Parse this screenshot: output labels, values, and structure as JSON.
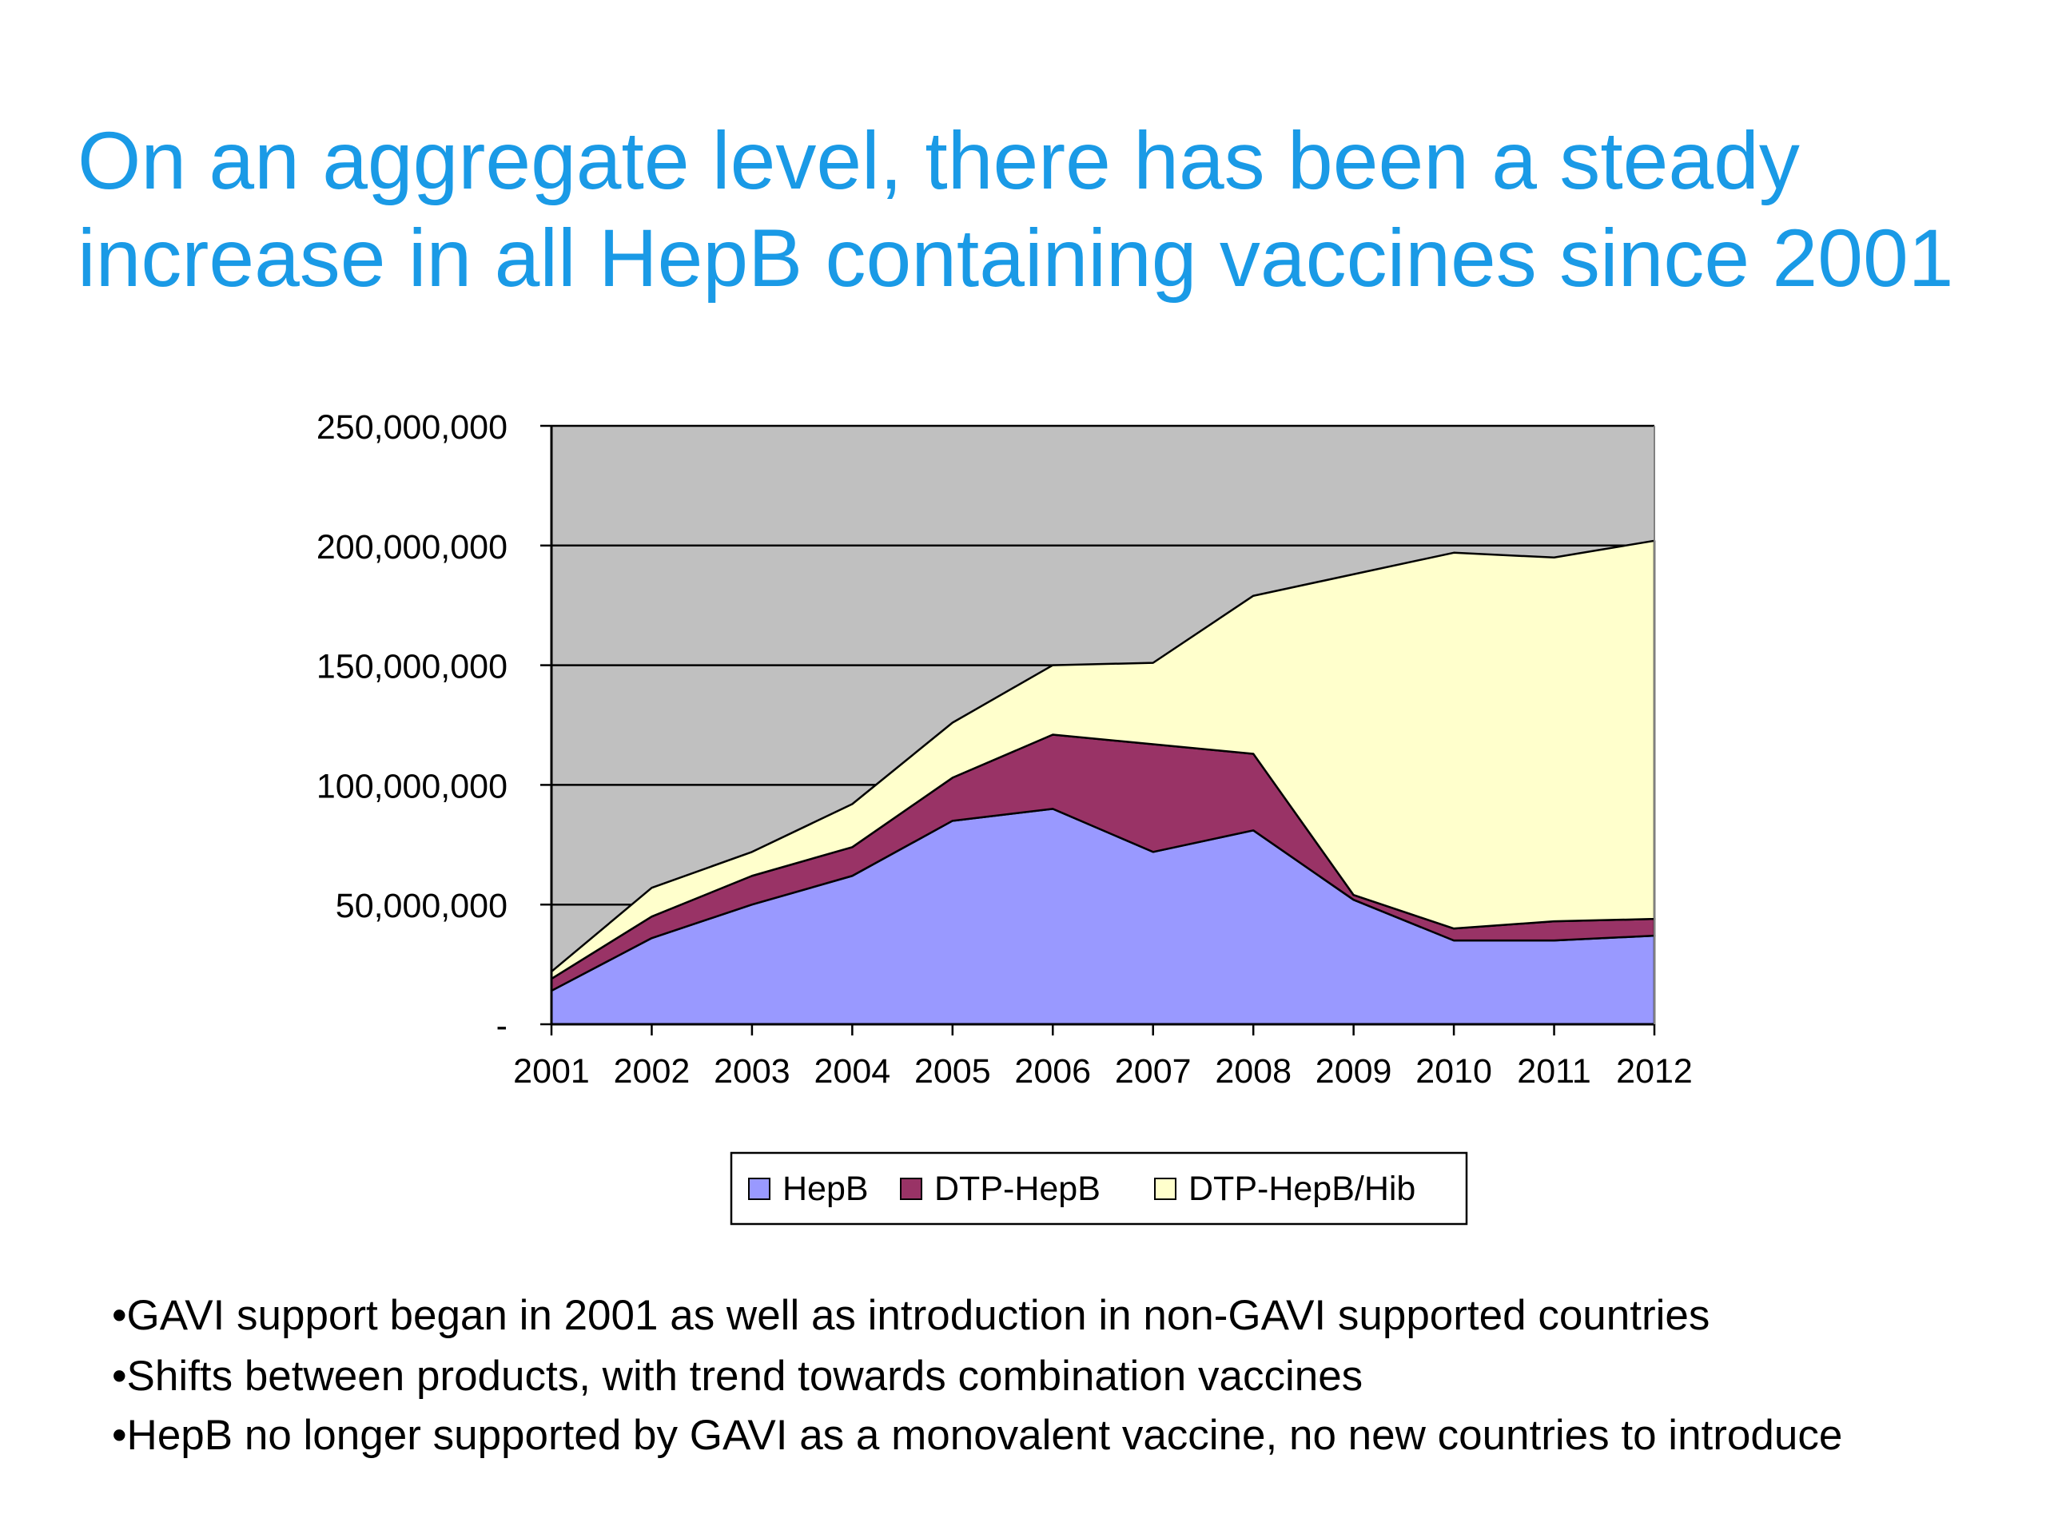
{
  "slide": {
    "title_lines": [
      "On an aggregate level, there has been a steady",
      "increase in all HepB containing vaccines since 2001"
    ],
    "bullets": [
      "•GAVI support began in 2001 as well as introduction in non-GAVI supported countries",
      "•Shifts between products, with trend towards combination vaccines",
      "•HepB no longer supported by GAVI as a monovalent vaccine, no new countries to introduce"
    ]
  },
  "chart_data": {
    "type": "area",
    "stacked": true,
    "categories": [
      "2001",
      "2002",
      "2003",
      "2004",
      "2005",
      "2006",
      "2007",
      "2008",
      "2009",
      "2010",
      "2011",
      "2012"
    ],
    "series": [
      {
        "name": "HepB",
        "color": "#9999ff",
        "values": [
          14000000,
          36000000,
          50000000,
          62000000,
          85000000,
          90000000,
          72000000,
          81000000,
          52000000,
          35000000,
          35000000,
          37000000
        ]
      },
      {
        "name": "DTP-HepB",
        "color": "#993366",
        "values": [
          5000000,
          9000000,
          12000000,
          12000000,
          18000000,
          31000000,
          45000000,
          32000000,
          2000000,
          5000000,
          8000000,
          7000000
        ]
      },
      {
        "name": "DTP-HepB/Hib",
        "color": "#ffffcc",
        "values": [
          3000000,
          12000000,
          10000000,
          18000000,
          23000000,
          29000000,
          34000000,
          66000000,
          134000000,
          157000000,
          152000000,
          158000000
        ]
      }
    ],
    "ylim": [
      0,
      250000000
    ],
    "yticks": [
      "-",
      "50,000,000",
      "100,000,000",
      "150,000,000",
      "200,000,000",
      "250,000,000"
    ],
    "grid": true,
    "plot_background": "#c0c0c0",
    "legend": "bottom"
  }
}
